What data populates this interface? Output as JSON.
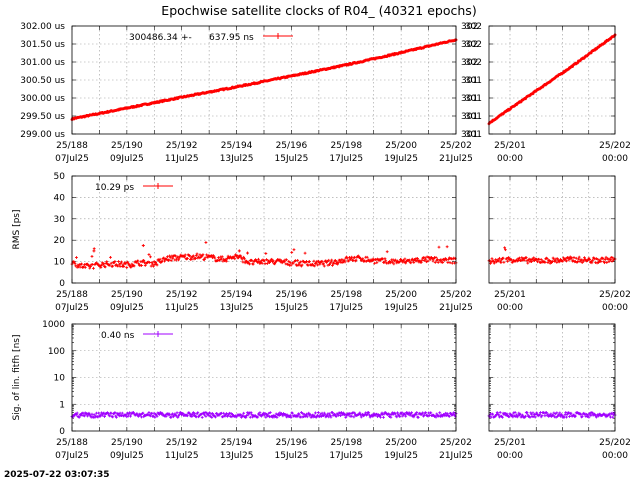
{
  "figure": {
    "title": "Epochwise satellite clocks of R04_ (40321 epochs)",
    "timestamp": "2025-07-22 03:07:35"
  },
  "colors": {
    "series_red": "#ff0000",
    "series_purple": "#a000ff",
    "grid": "#9a9a9a"
  },
  "chart_data": [
    {
      "type": "scatter",
      "panel": "clock-main",
      "ylabel": "",
      "ylim": [
        299.0,
        302.0
      ],
      "yticks": [
        299.0,
        299.5,
        300.0,
        300.5,
        301.0,
        301.5,
        302.0
      ],
      "ytick_labels": [
        "299.00 us",
        "299.50 us",
        "300.00 us",
        "300.50 us",
        "301.00 us",
        "301.50 us",
        "302.00 us"
      ],
      "xlim": [
        188,
        202
      ],
      "xticks": [
        188,
        190,
        192,
        194,
        196,
        198,
        200,
        202
      ],
      "xtick_labels": [
        [
          "25/188",
          "07Jul25"
        ],
        [
          "25/190",
          "09Jul25"
        ],
        [
          "25/192",
          "11Jul25"
        ],
        [
          "25/194",
          "13Jul25"
        ],
        [
          "25/196",
          "15Jul25"
        ],
        [
          "25/198",
          "17Jul25"
        ],
        [
          "25/200",
          "19Jul25"
        ],
        [
          "25/202",
          "21Jul25"
        ]
      ],
      "legend": {
        "value": "300486.34",
        "sep": "+-",
        "err": "637.95 ns",
        "position": "top-left"
      },
      "series": [
        {
          "x": [
            188,
            190,
            192,
            194,
            196,
            198,
            200,
            202
          ],
          "y": [
            299.42,
            299.72,
            300.02,
            300.31,
            300.61,
            300.92,
            301.26,
            301.62
          ]
        }
      ]
    },
    {
      "type": "scatter",
      "panel": "clock-zoom",
      "ylim": [
        301.6,
        302.2
      ],
      "yticks": [
        301.6,
        301.7,
        301.8,
        301.9,
        302.0,
        302.1,
        302.2
      ],
      "ytick_labels": [
        "301",
        "301",
        "301",
        "301",
        "302",
        "302",
        "302"
      ],
      "xlim": [
        200.8,
        202.0
      ],
      "xticks": [
        201,
        202
      ],
      "xtick_labels": [
        [
          "25/201",
          "00:00"
        ],
        [
          "25/202",
          "00:00"
        ]
      ],
      "series": [
        {
          "x": [
            200.8,
            201.2,
            201.6,
            202.0
          ],
          "y": [
            301.66,
            301.82,
            301.98,
            302.15
          ]
        }
      ]
    },
    {
      "type": "scatter",
      "panel": "rms-main",
      "ylabel": "RMS [ps]",
      "ylim": [
        0,
        50
      ],
      "yticks": [
        0,
        10,
        20,
        30,
        40,
        50
      ],
      "ytick_labels": [
        "0",
        "10",
        "20",
        "30",
        "40",
        "50"
      ],
      "xlim": [
        188,
        202
      ],
      "xticks": [
        188,
        190,
        192,
        194,
        196,
        198,
        200,
        202
      ],
      "xtick_labels": [
        [
          "25/188",
          "07Jul25"
        ],
        [
          "25/190",
          "09Jul25"
        ],
        [
          "25/192",
          "11Jul25"
        ],
        [
          "25/194",
          "13Jul25"
        ],
        [
          "25/196",
          "15Jul25"
        ],
        [
          "25/198",
          "17Jul25"
        ],
        [
          "25/200",
          "19Jul25"
        ],
        [
          "25/202",
          "21Jul25"
        ]
      ],
      "legend": {
        "value": "10.29 ps",
        "position": "top-left"
      },
      "series": [
        {
          "x": [
            188,
            188.5,
            189,
            189.5,
            190,
            190.5,
            191,
            191.5,
            192,
            192.5,
            193,
            193.5,
            194,
            194.5,
            195,
            195.5,
            196,
            196.5,
            197,
            197.5,
            198,
            198.5,
            199,
            199.5,
            200,
            200.5,
            201,
            201.5,
            202
          ],
          "y": [
            9,
            7.5,
            8.5,
            9,
            8.5,
            9.5,
            9,
            11.5,
            12,
            12.5,
            12,
            11,
            12.5,
            9.5,
            10,
            10,
            9.5,
            9,
            9,
            9.5,
            11,
            11.5,
            10.5,
            10,
            10,
            10.5,
            11,
            10.5,
            10.5
          ]
        }
      ]
    },
    {
      "type": "scatter",
      "panel": "rms-zoom",
      "ylim": [
        0,
        50
      ],
      "xlim": [
        200.8,
        202.0
      ],
      "xticks": [
        201,
        202
      ],
      "xtick_labels": [
        [
          "25/201",
          "00:00"
        ],
        [
          "25/202",
          "00:00"
        ]
      ],
      "series": [
        {
          "x": [
            200.8,
            201.0,
            201.2,
            201.4,
            201.6,
            201.8,
            202.0
          ],
          "y": [
            10,
            11,
            10.5,
            10.5,
            11,
            10.5,
            11
          ]
        }
      ]
    },
    {
      "type": "scatter",
      "panel": "sig-main",
      "ylabel": "Sig. of lin. fitfh [ns]",
      "yscale": "log",
      "ylim": [
        0.1,
        1000
      ],
      "yticks": [
        0.1,
        1,
        10,
        100,
        1000
      ],
      "ytick_labels": [
        "0",
        "1",
        "10",
        "100",
        "1000"
      ],
      "xlim": [
        188,
        202
      ],
      "xticks": [
        188,
        190,
        192,
        194,
        196,
        198,
        200,
        202
      ],
      "xtick_labels": [
        [
          "25/188",
          "07Jul25"
        ],
        [
          "25/190",
          "09Jul25"
        ],
        [
          "25/192",
          "11Jul25"
        ],
        [
          "25/194",
          "13Jul25"
        ],
        [
          "25/196",
          "15Jul25"
        ],
        [
          "25/198",
          "17Jul25"
        ],
        [
          "25/200",
          "19Jul25"
        ],
        [
          "25/202",
          "21Jul25"
        ]
      ],
      "legend": {
        "value": "0.40 ns",
        "position": "top-left"
      },
      "series": [
        {
          "x": [
            188,
            190,
            192,
            194,
            196,
            198,
            200,
            202
          ],
          "y": [
            0.4,
            0.4,
            0.4,
            0.4,
            0.4,
            0.4,
            0.4,
            0.4
          ]
        }
      ]
    },
    {
      "type": "scatter",
      "panel": "sig-zoom",
      "yscale": "log",
      "ylim": [
        0.1,
        1000
      ],
      "xlim": [
        200.8,
        202.0
      ],
      "xticks": [
        201,
        202
      ],
      "xtick_labels": [
        [
          "25/201",
          "00:00"
        ],
        [
          "25/202",
          "00:00"
        ]
      ],
      "series": [
        {
          "x": [
            200.8,
            201.4,
            202.0
          ],
          "y": [
            0.4,
            0.4,
            0.4
          ]
        }
      ]
    }
  ]
}
